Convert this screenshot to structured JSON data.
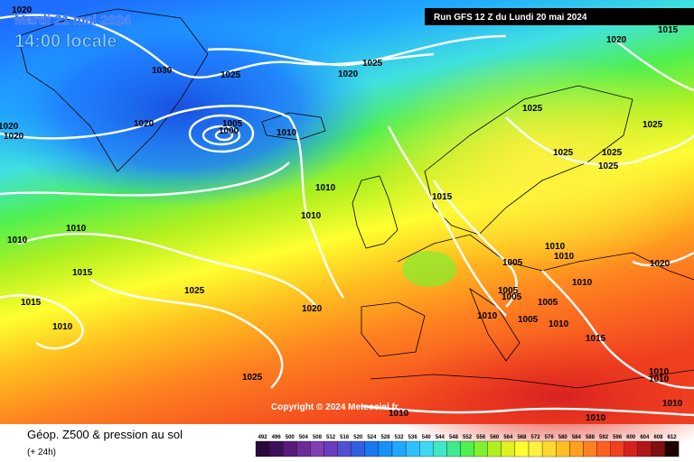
{
  "header": {
    "date": "Mardi 21 mai 2024",
    "time": "14:00 locale",
    "run": "Run GFS 12 Z du Lundi 20 mai 2024"
  },
  "copyright": "Copyright © 2024 Meteociel.fr",
  "footer": {
    "title": "Géop. Z500 & pression au sol",
    "lead": "(+ 24h)"
  },
  "isobar_labels": [
    "1015",
    "1020",
    "1025",
    "1020",
    "1030",
    "1025",
    "1020",
    "1020",
    "1020",
    "1020",
    "1005",
    "1000",
    "1010",
    "1025",
    "1025",
    "1025",
    "1025",
    "1025",
    "1010",
    "1010",
    "1015",
    "1010",
    "1010",
    "1015",
    "1010",
    "1010",
    "1005",
    "1020",
    "1025",
    "1015",
    "1005",
    "1005",
    "1005",
    "1010",
    "1020",
    "1010",
    "1010",
    "1005",
    "1010",
    "1015",
    "1025",
    "1010",
    "1010",
    "1010",
    "1010",
    "1010"
  ],
  "colorbar": {
    "values": [
      492,
      496,
      500,
      504,
      508,
      512,
      516,
      520,
      524,
      528,
      532,
      536,
      540,
      544,
      548,
      552,
      556,
      560,
      564,
      568,
      572,
      576,
      580,
      584,
      588,
      592,
      596,
      600,
      604,
      608,
      612
    ],
    "colors": [
      "#2a0a3a",
      "#3d0f5a",
      "#571a7a",
      "#6d2a95",
      "#8040b0",
      "#6a3cc0",
      "#5050d0",
      "#3060e0",
      "#1878f0",
      "#1890f8",
      "#20a8ff",
      "#30c0ff",
      "#40d8f0",
      "#40e8c8",
      "#40e890",
      "#50f050",
      "#80f030",
      "#b0f020",
      "#e0f020",
      "#ffff30",
      "#fff040",
      "#ffd830",
      "#ffc020",
      "#ffa020",
      "#ff8020",
      "#ff6020",
      "#f04020",
      "#d82020",
      "#b01818",
      "#801010",
      "#200000"
    ]
  }
}
